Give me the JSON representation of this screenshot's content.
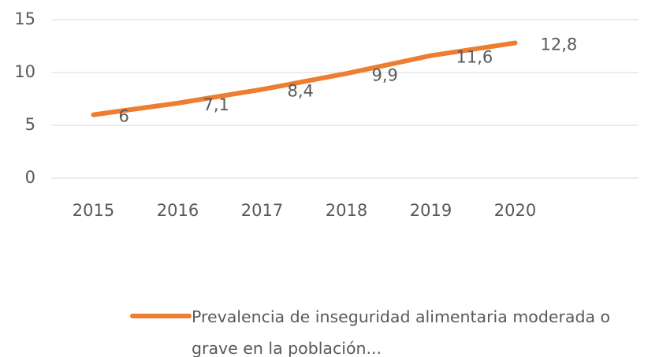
{
  "chart_data": {
    "type": "line",
    "categories": [
      "2015",
      "2016",
      "2017",
      "2018",
      "2019",
      "2020"
    ],
    "series": [
      {
        "name": "Prevalencia de inseguridad alimentaria moderada o grave en la población...",
        "color": "#ed7d31",
        "values": [
          6,
          7.1,
          8.4,
          9.9,
          11.6,
          12.8
        ],
        "value_labels": [
          "6",
          "7,1",
          "8,4",
          "9,9",
          "11,6",
          "12,8"
        ]
      }
    ],
    "ylim": [
      0,
      15
    ],
    "yticks": [
      0,
      5,
      10,
      15
    ],
    "grid": true,
    "legend": "bottom"
  }
}
